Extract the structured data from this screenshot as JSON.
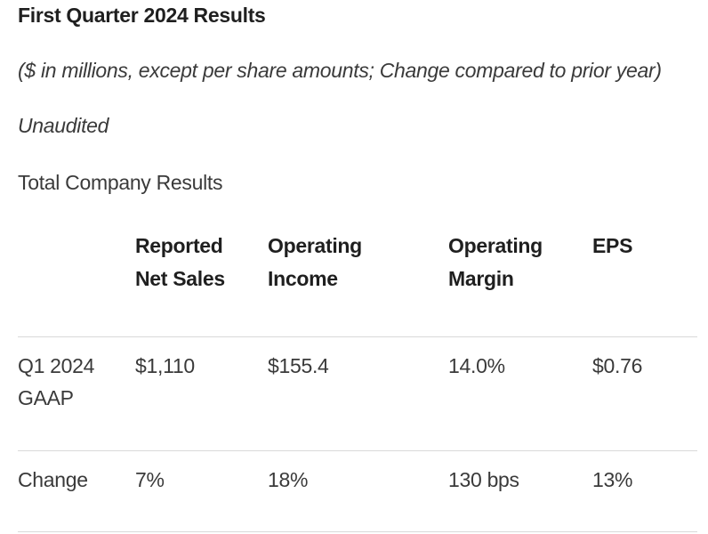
{
  "document": {
    "title": "First Quarter 2024 Results",
    "subtitle": "($ in millions, except per share amounts; Change compared to prior year)",
    "note": "Unaudited",
    "section_heading": "Total Company Results"
  },
  "table": {
    "headers": [
      {
        "line1": "",
        "line2": ""
      },
      {
        "line1": "Reported",
        "line2": "Net Sales"
      },
      {
        "line1": "Operating",
        "line2": "Income"
      },
      {
        "line1": "Operating",
        "line2": "Margin"
      },
      {
        "line1": "EPS",
        "line2": ""
      }
    ],
    "rows": [
      {
        "label_line1": "Q1 2024",
        "label_line2": "GAAP",
        "values": [
          "$1,110",
          "$155.4",
          "14.0%",
          "$0.76"
        ]
      },
      {
        "label_line1": "Change",
        "label_line2": "",
        "values": [
          "7%",
          "18%",
          "130 bps",
          "13%"
        ]
      }
    ]
  }
}
